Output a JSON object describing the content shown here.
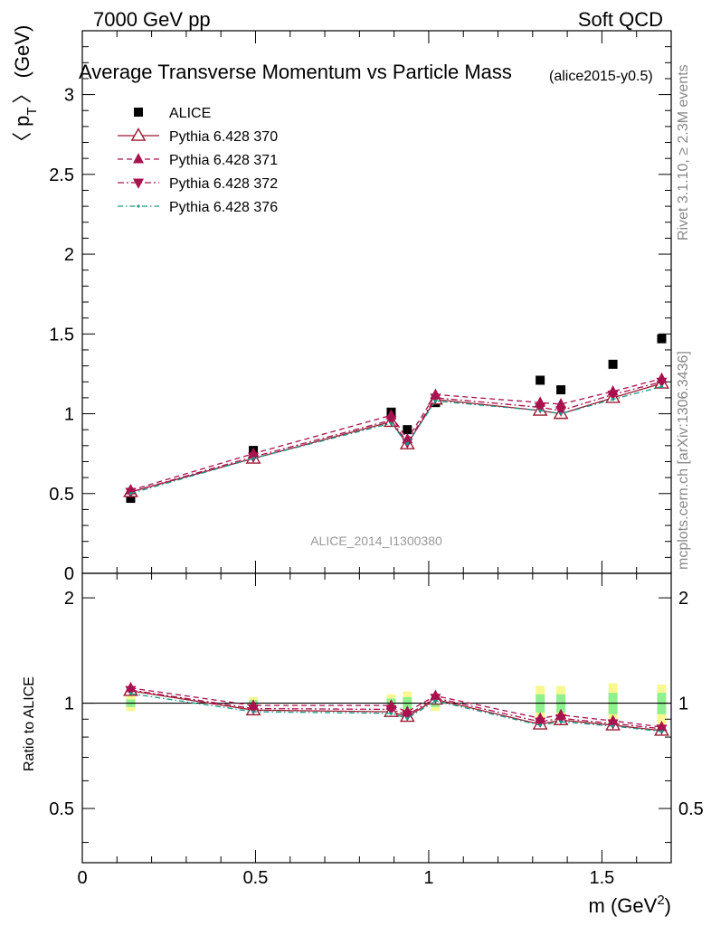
{
  "header": {
    "left": "7000 GeV pp",
    "right": "Soft QCD"
  },
  "side_labels": {
    "rivet": "Rivet 3.1.10, ≥ 2.3M events",
    "mcplots": "mcplots.cern.ch [arXiv:1306.3436]"
  },
  "colors": {
    "alice": "#000000",
    "p370": "#9b1b30",
    "p371": "#a8124f",
    "p372": "#a8124f",
    "p376": "#1a9a8a",
    "band_inner": "#8ef08e",
    "band_outer": "#f8f890"
  },
  "chart_data": [
    {
      "type": "scatter",
      "title": "Average Transverse Momentum vs Particle Mass",
      "title_suffix": "(alice2015-y0.5)",
      "ylabel": "〈 p",
      "ylabel_sub": "T",
      "ylabel_tail": "〉 (GeV)",
      "analysis_watermark": "ALICE_2014_I1300380",
      "xlim": [
        0,
        1.7
      ],
      "ylim": [
        0,
        3.4
      ],
      "yticks": [
        "0",
        "0.5",
        "1",
        "1.5",
        "2",
        "2.5",
        "3"
      ],
      "x": [
        0.1396,
        0.4937,
        0.8917,
        0.9383,
        1.0195,
        1.3217,
        1.3816,
        1.5318,
        1.6725
      ],
      "series": [
        {
          "name": "ALICE",
          "style": "data",
          "values": [
            0.47,
            0.77,
            1.01,
            0.9,
            1.07,
            1.21,
            1.15,
            1.31,
            1.47
          ]
        },
        {
          "name": "Pythia 6.428 370",
          "style": "solid-open-triangle",
          "values": [
            0.51,
            0.72,
            0.95,
            0.81,
            1.09,
            1.02,
            1.0,
            1.1,
            1.19
          ]
        },
        {
          "name": "Pythia 6.428 371",
          "style": "dashed-triangle-up",
          "values": [
            0.52,
            0.75,
            0.99,
            0.84,
            1.12,
            1.07,
            1.06,
            1.14,
            1.22
          ]
        },
        {
          "name": "Pythia 6.428 372",
          "style": "dashdot-triangle-down",
          "values": [
            0.51,
            0.73,
            0.96,
            0.82,
            1.1,
            1.04,
            1.02,
            1.12,
            1.2
          ]
        },
        {
          "name": "Pythia 6.428 376",
          "style": "dashdot-dot",
          "values": [
            0.5,
            0.72,
            0.94,
            0.81,
            1.08,
            1.02,
            1.0,
            1.09,
            1.17
          ]
        }
      ],
      "legend_position": "top-left"
    },
    {
      "type": "scatter",
      "ylabel": "Ratio to ALICE",
      "xlabel": "m (GeV",
      "xlabel_sup": "2",
      "xlabel_tail": ")",
      "xlim": [
        0,
        1.7
      ],
      "ylim": [
        0.35,
        2.35
      ],
      "log_y": true,
      "yticks": [
        "0.5",
        "1",
        "2"
      ],
      "xticks": [
        "0",
        "0.5",
        "1",
        "1.5"
      ],
      "x": [
        0.1396,
        0.4937,
        0.8917,
        0.9383,
        1.0195,
        1.3217,
        1.3816,
        1.5318,
        1.6725
      ],
      "band_inner": [
        0.025,
        0.02,
        0.03,
        0.04,
        0.025,
        0.06,
        0.06,
        0.07,
        0.07
      ],
      "band_outer": [
        0.05,
        0.04,
        0.06,
        0.08,
        0.05,
        0.12,
        0.12,
        0.14,
        0.13
      ],
      "series": [
        {
          "name": "Pythia 6.428 370",
          "style": "solid-open-triangle",
          "values": [
            1.085,
            0.955,
            0.945,
            0.915,
            1.025,
            0.87,
            0.895,
            0.865,
            0.835
          ]
        },
        {
          "name": "Pythia 6.428 371",
          "style": "dashed-triangle-up",
          "values": [
            1.105,
            0.985,
            0.985,
            0.945,
            1.05,
            0.905,
            0.925,
            0.89,
            0.855
          ]
        },
        {
          "name": "Pythia 6.428 372",
          "style": "dashdot-triangle-down",
          "values": [
            1.09,
            0.965,
            0.96,
            0.925,
            1.035,
            0.885,
            0.905,
            0.875,
            0.845
          ]
        },
        {
          "name": "Pythia 6.428 376",
          "style": "dashdot-dot",
          "values": [
            1.065,
            0.945,
            0.935,
            0.905,
            1.015,
            0.865,
            0.885,
            0.86,
            0.83
          ]
        }
      ]
    }
  ]
}
